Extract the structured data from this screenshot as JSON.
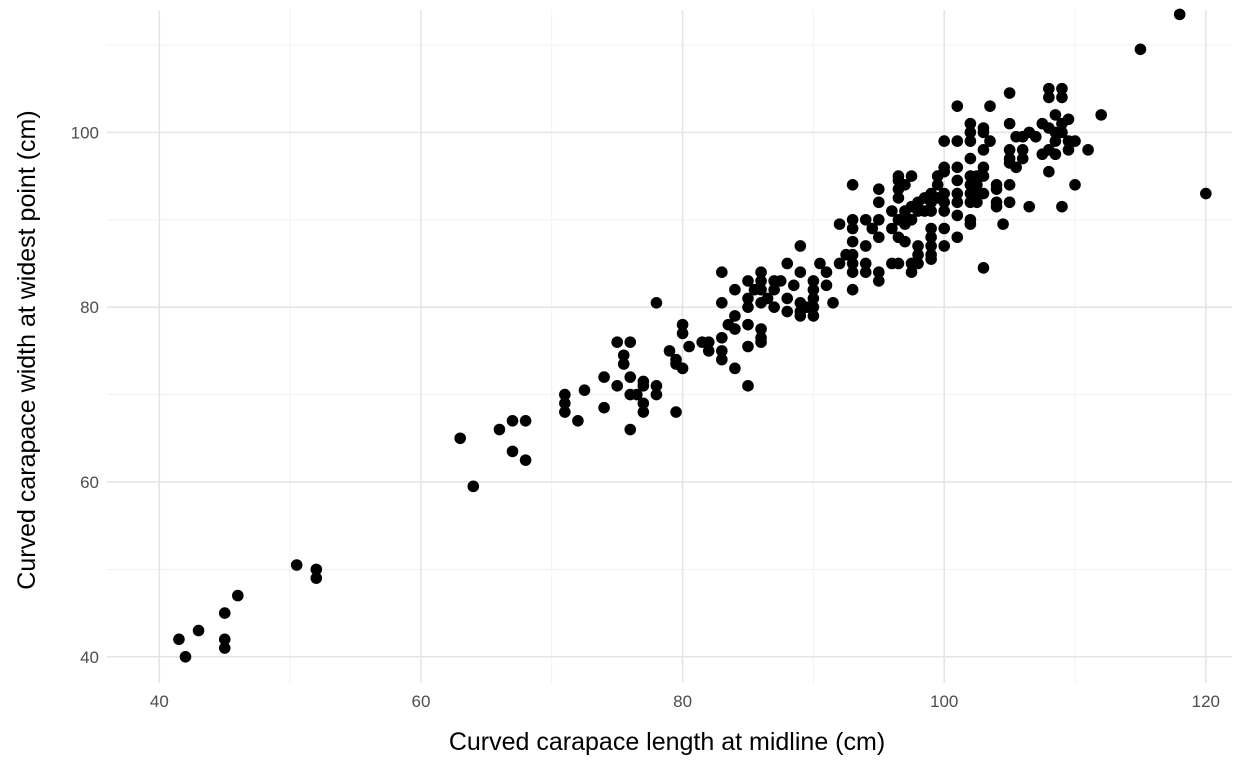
{
  "chart_data": {
    "type": "scatter",
    "xlabel": "Curved carapace length at midline (cm)",
    "ylabel": "Curved carapace width at widest point (cm)",
    "xlim": [
      36,
      122
    ],
    "ylim": [
      37,
      114
    ],
    "x_ticks": [
      40,
      60,
      80,
      100,
      120
    ],
    "y_ticks": [
      40,
      60,
      80,
      100
    ],
    "x_minor_ticks": [
      50,
      70,
      90,
      110
    ],
    "y_minor_ticks": [
      50,
      70,
      90,
      110
    ],
    "grid": true,
    "point_color": "#000000",
    "points": [
      [
        41.5,
        42
      ],
      [
        42,
        40
      ],
      [
        43,
        43
      ],
      [
        45,
        45
      ],
      [
        45,
        42
      ],
      [
        45,
        41
      ],
      [
        46,
        47
      ],
      [
        50.5,
        50.5
      ],
      [
        52,
        50
      ],
      [
        52,
        49
      ],
      [
        63,
        65
      ],
      [
        64,
        59.5
      ],
      [
        66,
        66
      ],
      [
        67,
        67
      ],
      [
        67,
        63.5
      ],
      [
        68,
        67
      ],
      [
        68,
        62.5
      ],
      [
        71,
        70
      ],
      [
        71,
        69
      ],
      [
        71,
        68
      ],
      [
        72,
        67
      ],
      [
        72.5,
        70.5
      ],
      [
        74,
        72
      ],
      [
        74,
        68.5
      ],
      [
        75,
        76
      ],
      [
        75,
        71
      ],
      [
        75.5,
        74.5
      ],
      [
        75.5,
        73.5
      ],
      [
        76,
        76
      ],
      [
        76,
        72
      ],
      [
        76,
        70
      ],
      [
        76,
        66
      ],
      [
        76.5,
        70
      ],
      [
        77,
        71.5
      ],
      [
        77,
        71
      ],
      [
        77,
        69
      ],
      [
        77,
        68
      ],
      [
        78,
        80.5
      ],
      [
        78,
        71
      ],
      [
        78,
        70
      ],
      [
        79,
        75
      ],
      [
        79.5,
        74
      ],
      [
        79.5,
        73.5
      ],
      [
        79.5,
        68
      ],
      [
        80,
        78
      ],
      [
        80,
        77
      ],
      [
        80,
        73
      ],
      [
        80.5,
        75.5
      ],
      [
        81.5,
        76
      ],
      [
        82,
        76
      ],
      [
        82,
        75
      ],
      [
        83,
        84
      ],
      [
        83,
        80.5
      ],
      [
        83,
        76.5
      ],
      [
        83,
        75
      ],
      [
        83,
        74
      ],
      [
        83.5,
        78
      ],
      [
        84,
        82
      ],
      [
        84,
        79
      ],
      [
        84,
        77.5
      ],
      [
        84,
        73
      ],
      [
        85,
        83
      ],
      [
        85,
        81
      ],
      [
        85,
        80
      ],
      [
        85,
        78
      ],
      [
        85,
        75.5
      ],
      [
        85,
        71
      ],
      [
        85.5,
        82
      ],
      [
        86,
        84
      ],
      [
        86,
        83
      ],
      [
        86,
        82
      ],
      [
        86,
        80.5
      ],
      [
        86,
        77.5
      ],
      [
        86,
        76.5
      ],
      [
        86,
        76
      ],
      [
        86.5,
        81
      ],
      [
        87,
        83
      ],
      [
        87,
        82
      ],
      [
        87,
        80
      ],
      [
        87.5,
        83
      ],
      [
        88,
        85
      ],
      [
        88,
        81
      ],
      [
        88,
        79.5
      ],
      [
        88.5,
        82.5
      ],
      [
        89,
        87
      ],
      [
        89,
        84
      ],
      [
        89,
        80.5
      ],
      [
        89,
        79.5
      ],
      [
        89,
        79
      ],
      [
        89.5,
        80
      ],
      [
        90,
        83
      ],
      [
        90,
        82
      ],
      [
        90,
        81
      ],
      [
        90,
        80
      ],
      [
        90,
        79
      ],
      [
        90.5,
        85
      ],
      [
        91,
        84
      ],
      [
        91,
        82.5
      ],
      [
        91.5,
        80.5
      ],
      [
        92,
        89.5
      ],
      [
        92,
        85
      ],
      [
        92.5,
        86
      ],
      [
        93,
        94
      ],
      [
        93,
        90
      ],
      [
        93,
        89
      ],
      [
        93,
        87.5
      ],
      [
        93,
        86
      ],
      [
        93,
        85
      ],
      [
        93,
        84
      ],
      [
        93,
        82
      ],
      [
        94,
        90
      ],
      [
        94,
        87
      ],
      [
        94,
        85
      ],
      [
        94,
        84
      ],
      [
        94.5,
        89
      ],
      [
        95,
        93.5
      ],
      [
        95,
        92
      ],
      [
        95,
        90
      ],
      [
        95,
        88
      ],
      [
        95,
        84
      ],
      [
        95,
        83
      ],
      [
        96,
        91
      ],
      [
        96,
        89
      ],
      [
        96,
        85
      ],
      [
        96.5,
        95
      ],
      [
        96.5,
        94.5
      ],
      [
        96.5,
        93.5
      ],
      [
        96.5,
        92.5
      ],
      [
        96.5,
        90
      ],
      [
        96.5,
        88
      ],
      [
        96.5,
        85
      ],
      [
        97,
        94
      ],
      [
        97,
        91
      ],
      [
        97,
        90.5
      ],
      [
        97,
        89.5
      ],
      [
        97,
        87.5
      ],
      [
        97.5,
        95
      ],
      [
        97.5,
        91.5
      ],
      [
        97.5,
        90
      ],
      [
        97.5,
        85
      ],
      [
        97.5,
        84
      ],
      [
        98,
        92
      ],
      [
        98,
        91
      ],
      [
        98,
        87
      ],
      [
        98,
        86
      ],
      [
        98,
        85
      ],
      [
        98.5,
        92.5
      ],
      [
        98.5,
        91
      ],
      [
        99,
        93
      ],
      [
        99,
        92
      ],
      [
        99,
        91
      ],
      [
        99,
        89
      ],
      [
        99,
        88
      ],
      [
        99,
        87
      ],
      [
        99,
        86
      ],
      [
        99,
        85.5
      ],
      [
        99.5,
        95
      ],
      [
        99.5,
        94
      ],
      [
        99.5,
        92.5
      ],
      [
        100,
        99
      ],
      [
        100,
        96
      ],
      [
        100,
        95.5
      ],
      [
        100,
        93
      ],
      [
        100,
        92
      ],
      [
        100,
        91
      ],
      [
        100,
        89
      ],
      [
        100,
        87
      ],
      [
        101,
        103
      ],
      [
        101,
        99
      ],
      [
        101,
        96
      ],
      [
        101,
        94.5
      ],
      [
        101,
        93
      ],
      [
        101,
        92
      ],
      [
        101,
        90.5
      ],
      [
        101,
        88
      ],
      [
        102,
        101
      ],
      [
        102,
        100
      ],
      [
        102,
        99
      ],
      [
        102,
        97
      ],
      [
        102,
        95
      ],
      [
        102,
        94
      ],
      [
        102,
        93
      ],
      [
        102,
        92
      ],
      [
        102,
        90
      ],
      [
        102,
        89.5
      ],
      [
        102.5,
        95
      ],
      [
        102.5,
        94
      ],
      [
        102.5,
        93
      ],
      [
        102.5,
        92
      ],
      [
        103,
        100.5
      ],
      [
        103,
        100
      ],
      [
        103,
        98
      ],
      [
        103,
        96
      ],
      [
        103,
        95
      ],
      [
        103,
        93
      ],
      [
        103,
        84.5
      ],
      [
        103.5,
        103
      ],
      [
        103.5,
        99
      ],
      [
        104,
        94
      ],
      [
        104,
        93.5
      ],
      [
        104,
        92
      ],
      [
        104,
        91.5
      ],
      [
        104.5,
        89.5
      ],
      [
        105,
        104.5
      ],
      [
        105,
        101
      ],
      [
        105,
        98
      ],
      [
        105,
        97
      ],
      [
        105,
        96.5
      ],
      [
        105,
        94
      ],
      [
        105,
        92
      ],
      [
        105.5,
        99.5
      ],
      [
        105.5,
        96
      ],
      [
        106,
        99.5
      ],
      [
        106,
        98
      ],
      [
        106,
        97
      ],
      [
        106.5,
        100
      ],
      [
        106.5,
        91.5
      ],
      [
        107,
        99.5
      ],
      [
        107.5,
        101
      ],
      [
        107.5,
        97.5
      ],
      [
        108,
        105
      ],
      [
        108,
        104
      ],
      [
        108,
        100.5
      ],
      [
        108,
        98
      ],
      [
        108,
        95.5
      ],
      [
        108.5,
        102
      ],
      [
        108.5,
        100
      ],
      [
        108.5,
        99
      ],
      [
        108.5,
        97.5
      ],
      [
        109,
        105
      ],
      [
        109,
        104
      ],
      [
        109,
        101
      ],
      [
        109,
        100
      ],
      [
        109,
        91.5
      ],
      [
        109.5,
        101.5
      ],
      [
        109.5,
        99
      ],
      [
        109.5,
        98
      ],
      [
        110,
        99
      ],
      [
        110,
        94
      ],
      [
        111,
        98
      ],
      [
        112,
        102
      ],
      [
        115,
        109.5
      ],
      [
        118,
        113.5
      ],
      [
        120,
        93
      ]
    ]
  }
}
